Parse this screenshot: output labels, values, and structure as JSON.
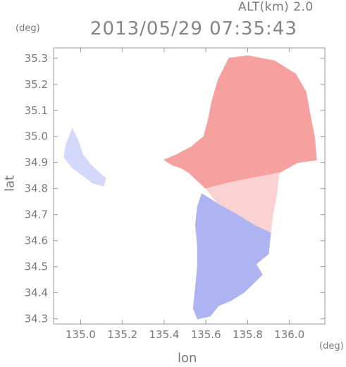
{
  "header": {
    "altitude_label": "ALT(km) 2.0",
    "timestamp": "2013/05/29 07:35:43"
  },
  "chart_data": {
    "type": "heatmap",
    "title": "2013/05/29 07:35:43",
    "xlabel": "lon",
    "ylabel": "lat",
    "x_unit": "(deg)",
    "y_unit": "(deg)",
    "xlim": [
      134.87,
      136.17
    ],
    "ylim": [
      34.28,
      35.34
    ],
    "xticks": [
      "135.0",
      "135.2",
      "135.4",
      "135.6",
      "135.8",
      "136.0"
    ],
    "xtick_values": [
      135.0,
      135.2,
      135.4,
      135.6,
      135.8,
      136.0
    ],
    "yticks": [
      "34.3",
      "34.4",
      "34.5",
      "34.6",
      "34.7",
      "34.8",
      "34.9",
      "35.0",
      "35.1",
      "35.2",
      "35.3"
    ],
    "ytick_values": [
      34.3,
      34.4,
      34.5,
      34.6,
      34.7,
      34.8,
      34.9,
      35.0,
      35.1,
      35.2,
      35.3
    ],
    "colors": {
      "red": "#f7a0a0",
      "light_red": "#fbd2d2",
      "blue": "#aeb4f2",
      "light_blue": "#d4d8fa",
      "axis": "#9a9a9a"
    },
    "regions": [
      {
        "name": "red-echo-main",
        "value_sign": "positive",
        "color": "red",
        "points": [
          [
            135.71,
            35.3
          ],
          [
            135.8,
            35.31
          ],
          [
            135.93,
            35.29
          ],
          [
            136.03,
            35.24
          ],
          [
            136.08,
            35.17
          ],
          [
            136.1,
            35.08
          ],
          [
            136.12,
            35.0
          ],
          [
            136.13,
            34.91
          ],
          [
            136.04,
            34.9
          ],
          [
            135.95,
            34.86
          ],
          [
            135.82,
            34.84
          ],
          [
            135.7,
            34.82
          ],
          [
            135.6,
            34.8
          ],
          [
            135.56,
            34.83
          ],
          [
            135.52,
            34.86
          ],
          [
            135.48,
            34.88
          ],
          [
            135.44,
            34.89
          ],
          [
            135.4,
            34.91
          ],
          [
            135.46,
            34.93
          ],
          [
            135.53,
            34.96
          ],
          [
            135.59,
            35.0
          ],
          [
            135.61,
            35.06
          ],
          [
            135.63,
            35.14
          ],
          [
            135.66,
            35.22
          ]
        ]
      },
      {
        "name": "pink-transition",
        "value_sign": "positive",
        "color": "light_red",
        "points": [
          [
            135.6,
            34.8
          ],
          [
            135.7,
            34.82
          ],
          [
            135.82,
            34.84
          ],
          [
            135.95,
            34.86
          ],
          [
            135.94,
            34.78
          ],
          [
            135.92,
            34.7
          ],
          [
            135.91,
            34.63
          ],
          [
            135.83,
            34.66
          ],
          [
            135.75,
            34.7
          ],
          [
            135.66,
            34.74
          ]
        ]
      },
      {
        "name": "blue-echo-south",
        "value_sign": "negative",
        "color": "blue",
        "points": [
          [
            135.58,
            34.78
          ],
          [
            135.66,
            34.74
          ],
          [
            135.75,
            34.7
          ],
          [
            135.83,
            34.66
          ],
          [
            135.91,
            34.63
          ],
          [
            135.9,
            34.55
          ],
          [
            135.84,
            34.51
          ],
          [
            135.87,
            34.47
          ],
          [
            135.82,
            34.43
          ],
          [
            135.78,
            34.4
          ],
          [
            135.72,
            34.37
          ],
          [
            135.66,
            34.35
          ],
          [
            135.62,
            34.31
          ],
          [
            135.56,
            34.3
          ],
          [
            135.54,
            34.34
          ],
          [
            135.55,
            34.42
          ],
          [
            135.56,
            34.5
          ],
          [
            135.56,
            34.58
          ],
          [
            135.55,
            34.66
          ],
          [
            135.56,
            34.73
          ]
        ]
      },
      {
        "name": "blue-echo-west",
        "value_sign": "negative",
        "color": "light_blue",
        "points": [
          [
            134.96,
            35.03
          ],
          [
            134.99,
            34.98
          ],
          [
            135.01,
            34.93
          ],
          [
            135.05,
            34.89
          ],
          [
            135.09,
            34.86
          ],
          [
            135.12,
            34.84
          ],
          [
            135.11,
            34.81
          ],
          [
            135.06,
            34.82
          ],
          [
            135.01,
            34.85
          ],
          [
            134.96,
            34.88
          ],
          [
            134.92,
            34.92
          ],
          [
            134.93,
            34.97
          ]
        ]
      }
    ]
  }
}
